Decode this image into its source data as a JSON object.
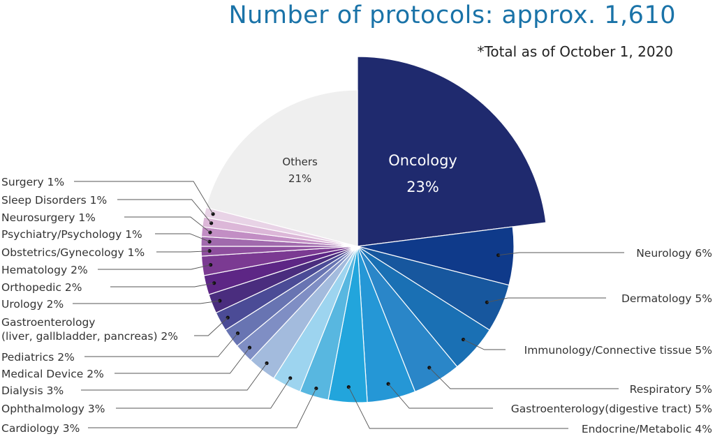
{
  "title": "Number of protocols: approx. 1,610",
  "subtitle": "*Total as of October 1, 2020",
  "chart_data": {
    "type": "pie",
    "unit": "%",
    "slices": [
      {
        "label": "Oncology",
        "value": 23,
        "color": "#1f2a6e",
        "inner_line1": "Oncology",
        "inner_line2": "23%"
      },
      {
        "label": "Neurology 6%",
        "value": 6,
        "color": "#0f3a8a"
      },
      {
        "label": "Dermatology  5%",
        "value": 5,
        "color": "#17579e"
      },
      {
        "label": "Immunology/Connective tissue 5%",
        "value": 5,
        "color": "#1a70b4"
      },
      {
        "label": "Respiratory 5%",
        "value": 5,
        "color": "#2a86c8"
      },
      {
        "label": "Gastroenterology(digestive tract) 5%",
        "value": 5,
        "color": "#2597d6"
      },
      {
        "label": "Endocrine/Metabolic 4%",
        "value": 4,
        "color": "#22a5dc"
      },
      {
        "label": "Cardiology 3%",
        "value": 3,
        "color": "#58b7e0"
      },
      {
        "label": "Ophthalmology 3%",
        "value": 3,
        "color": "#9dd4ef"
      },
      {
        "label": "Dialysis 3%",
        "value": 3,
        "color": "#a3bbdd"
      },
      {
        "label": "Medical Device 2%",
        "value": 2,
        "color": "#7f8ec4"
      },
      {
        "label": "Pediatrics 2%",
        "value": 2,
        "color": "#6874b2"
      },
      {
        "label": "Gastroenterology",
        "label_line2": "(liver, gallbladder, pancreas) 2%",
        "value": 2,
        "color": "#4b4b96"
      },
      {
        "label": "Urology 2%",
        "value": 2,
        "color": "#4a2d7e"
      },
      {
        "label": "Orthopedic 2%",
        "value": 2,
        "color": "#5d2685"
      },
      {
        "label": "Hematology 2%",
        "value": 2,
        "color": "#7b3a92"
      },
      {
        "label": "Obstetrics/Gynecology 1%",
        "value": 1,
        "color": "#8e4f9e"
      },
      {
        "label": "Psychiatry/Psychology 1%",
        "value": 1,
        "color": "#a16aad"
      },
      {
        "label": "Neurosurgery 1%",
        "value": 1,
        "color": "#c28ec4"
      },
      {
        "label": "Sleep Disorders 1%",
        "value": 1,
        "color": "#dcb7d8"
      },
      {
        "label": "Surgery 1%",
        "value": 1,
        "color": "#e8d3e6"
      },
      {
        "label": "Others",
        "value": 21,
        "color": "#efefef",
        "inner_line1": "Others",
        "inner_line2": "21%"
      }
    ]
  }
}
